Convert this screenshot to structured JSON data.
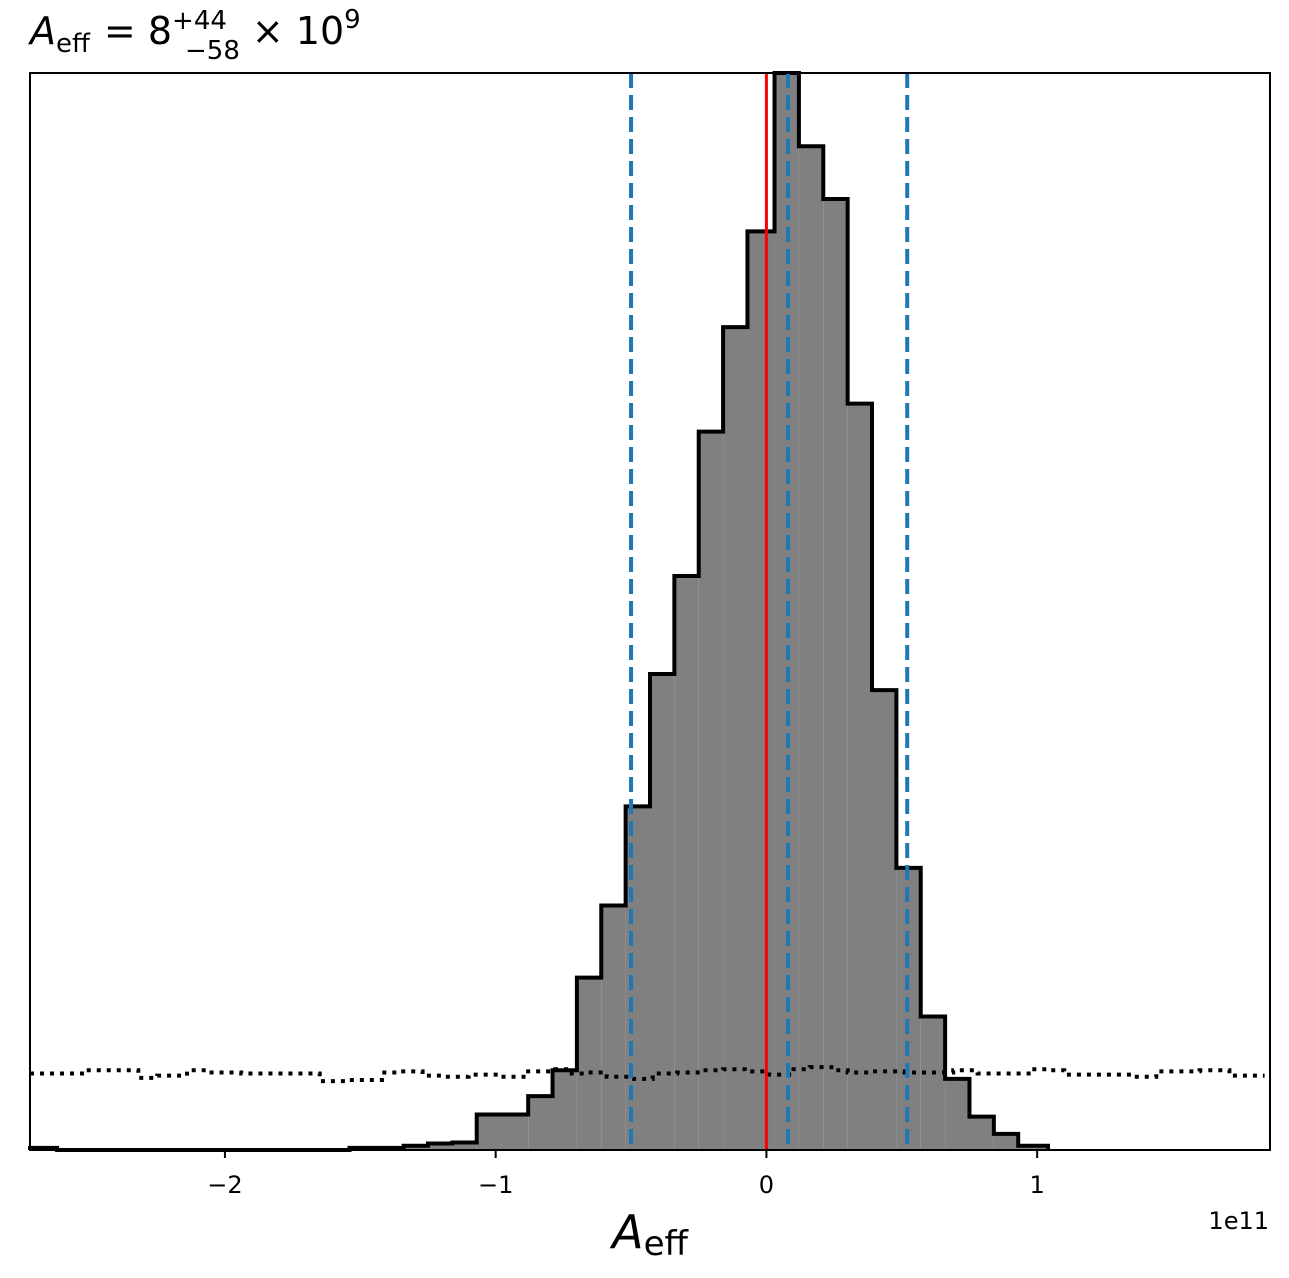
{
  "chart_data": {
    "type": "histogram",
    "title": {
      "symbol": "A",
      "subscript": "eff",
      "equals": "= 8",
      "sup_err": "+44",
      "sub_err": "−58",
      "times": "× 10",
      "exponent": "9"
    },
    "xlabel": {
      "symbol": "A",
      "subscript": "eff"
    },
    "offset_text": "1e11",
    "x_scale": 100000000000.0,
    "xlim": [
      -2.72,
      1.86
    ],
    "ylim": [
      0,
      1.0
    ],
    "x_ticks": [
      {
        "value": -2,
        "label": "−2"
      },
      {
        "value": -1,
        "label": "−1"
      },
      {
        "value": 0,
        "label": "0"
      },
      {
        "value": 1,
        "label": "1"
      }
    ],
    "y_ticks": [],
    "posterior_histogram": {
      "fill": "#808080",
      "edge": "#000000",
      "bin_edges": [
        -2.72,
        -2.62,
        -1.54,
        -1.34,
        -1.25,
        -1.16,
        -1.07,
        -0.88,
        -0.79,
        -0.7,
        -0.61,
        -0.52,
        -0.43,
        -0.34,
        -0.25,
        -0.16,
        -0.07,
        0.03,
        0.12,
        0.21,
        0.3,
        0.39,
        0.48,
        0.57,
        0.66,
        0.75,
        0.84,
        0.93,
        1.04
      ],
      "heights": [
        0.002,
        0.0,
        0.002,
        0.004,
        0.006,
        0.007,
        0.033,
        0.05,
        0.074,
        0.16,
        0.227,
        0.319,
        0.442,
        0.533,
        0.667,
        0.764,
        0.853,
        1.0,
        0.932,
        0.883,
        0.693,
        0.427,
        0.262,
        0.124,
        0.066,
        0.031,
        0.015,
        0.004
      ]
    },
    "prior_histogram": {
      "style": "dotted",
      "color": "#000000",
      "bin_edges": [
        -2.72,
        -2.52,
        -2.32,
        -2.25,
        -2.14,
        -2.06,
        -1.94,
        -1.65,
        -1.54,
        -1.42,
        -1.36,
        -1.27,
        -1.19,
        -1.1,
        -0.99,
        -0.88,
        -0.78,
        -0.74,
        -0.67,
        -0.59,
        -0.5,
        -0.42,
        -0.33,
        -0.24,
        -0.16,
        -0.08,
        0.01,
        0.1,
        0.16,
        0.24,
        0.3,
        0.39,
        0.51,
        0.69,
        0.78,
        0.98,
        1.04,
        1.1,
        1.36,
        1.44,
        1.6,
        1.71,
        1.84
      ],
      "heights": [
        0.071,
        0.074,
        0.067,
        0.069,
        0.074,
        0.072,
        0.071,
        0.064,
        0.065,
        0.072,
        0.073,
        0.069,
        0.068,
        0.07,
        0.068,
        0.073,
        0.075,
        0.071,
        0.072,
        0.068,
        0.066,
        0.071,
        0.072,
        0.074,
        0.075,
        0.073,
        0.07,
        0.075,
        0.077,
        0.074,
        0.072,
        0.073,
        0.072,
        0.074,
        0.071,
        0.075,
        0.074,
        0.07,
        0.068,
        0.073,
        0.074,
        0.069
      ]
    },
    "vlines": [
      {
        "name": "lower-bound",
        "x": -0.5,
        "color": "#1f77b4",
        "style": "dashed"
      },
      {
        "name": "median",
        "x": 0.08,
        "color": "#1f77b4",
        "style": "dashed"
      },
      {
        "name": "upper-bound",
        "x": 0.52,
        "color": "#1f77b4",
        "style": "dashed"
      },
      {
        "name": "truth",
        "x": 0.0,
        "color": "#ff0000",
        "style": "solid"
      }
    ],
    "grid": false,
    "legend": "none"
  }
}
